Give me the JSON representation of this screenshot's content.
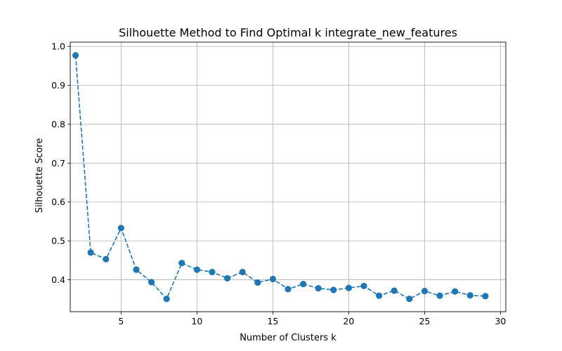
{
  "chart_data": {
    "type": "line",
    "title": "Silhouette Method to Find Optimal k integrate_new_features",
    "xlabel": "Number of Clusters k",
    "ylabel": "Silhouette Score",
    "xlim": [
      1.65,
      30.35
    ],
    "ylim": [
      0.318,
      1.011
    ],
    "xticks": [
      5,
      10,
      15,
      20,
      25,
      30
    ],
    "yticks": [
      0.4,
      0.5,
      0.6,
      0.7,
      0.8,
      0.9,
      1.0
    ],
    "xtick_labels": [
      "5",
      "10",
      "15",
      "20",
      "25",
      "30"
    ],
    "ytick_labels": [
      "0.4",
      "0.5",
      "0.6",
      "0.7",
      "0.8",
      "0.9",
      "1.0"
    ],
    "grid": true,
    "line_style": "dashed",
    "marker": "circle",
    "color": "#1f77b4",
    "series": [
      {
        "x": [
          2,
          3,
          4,
          5,
          6,
          7,
          8,
          9,
          10,
          11,
          12,
          13,
          14,
          15,
          16,
          17,
          18,
          19,
          20,
          21,
          22,
          23,
          24,
          25,
          26,
          27,
          28,
          29
        ],
        "values": [
          0.977,
          0.47,
          0.453,
          0.533,
          0.426,
          0.394,
          0.351,
          0.443,
          0.426,
          0.42,
          0.404,
          0.42,
          0.393,
          0.402,
          0.376,
          0.389,
          0.378,
          0.374,
          0.379,
          0.384,
          0.359,
          0.372,
          0.351,
          0.371,
          0.359,
          0.37,
          0.36,
          0.358
        ]
      }
    ]
  }
}
